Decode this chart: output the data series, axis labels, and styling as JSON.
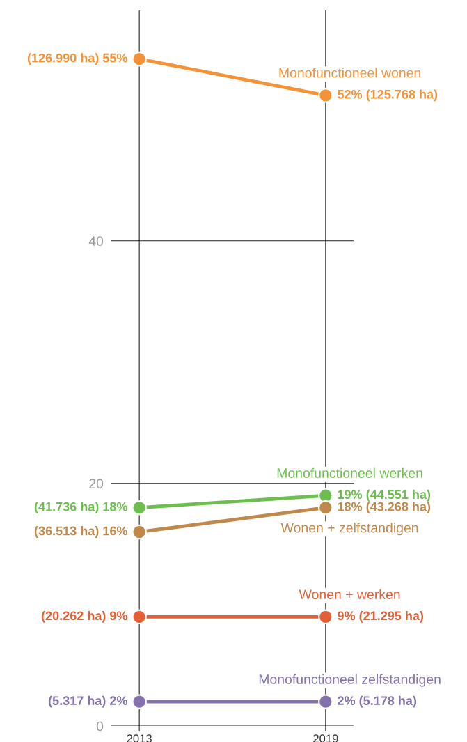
{
  "chart_data": {
    "type": "line",
    "categories": [
      "2013",
      "2019"
    ],
    "ylim": [
      0,
      59
    ],
    "yticks": [
      0,
      20,
      40
    ],
    "grid": true,
    "marker": "circle",
    "line_style": "solid",
    "legend": false,
    "series": [
      {
        "name": "Monofunctioneel wonen",
        "color": "#f39237",
        "values": [
          55,
          52
        ],
        "value_labels": [
          "(126.990 ha) 55%",
          "52% (125.768 ha)"
        ]
      },
      {
        "name": "Monofunctioneel werken",
        "color": "#6dbe4f",
        "values": [
          18,
          19
        ],
        "value_labels": [
          "(41.736 ha) 18%",
          "19% (44.551 ha)"
        ]
      },
      {
        "name": "Wonen + zelfstandigen",
        "color": "#c0884a",
        "values": [
          16,
          18
        ],
        "value_labels": [
          "(36.513 ha) 16%",
          "18% (43.268 ha)"
        ]
      },
      {
        "name": "Wonen + werken",
        "color": "#e35f35",
        "values": [
          9,
          9
        ],
        "value_labels": [
          "(20.262 ha) 9%",
          "9% (21.295 ha)"
        ]
      },
      {
        "name": "Monofunctioneel zelfstandigen",
        "color": "#8472ad",
        "values": [
          2,
          2
        ],
        "value_labels": [
          "(5.317 ha) 2%",
          "2% (5.178 ha)"
        ]
      }
    ]
  }
}
